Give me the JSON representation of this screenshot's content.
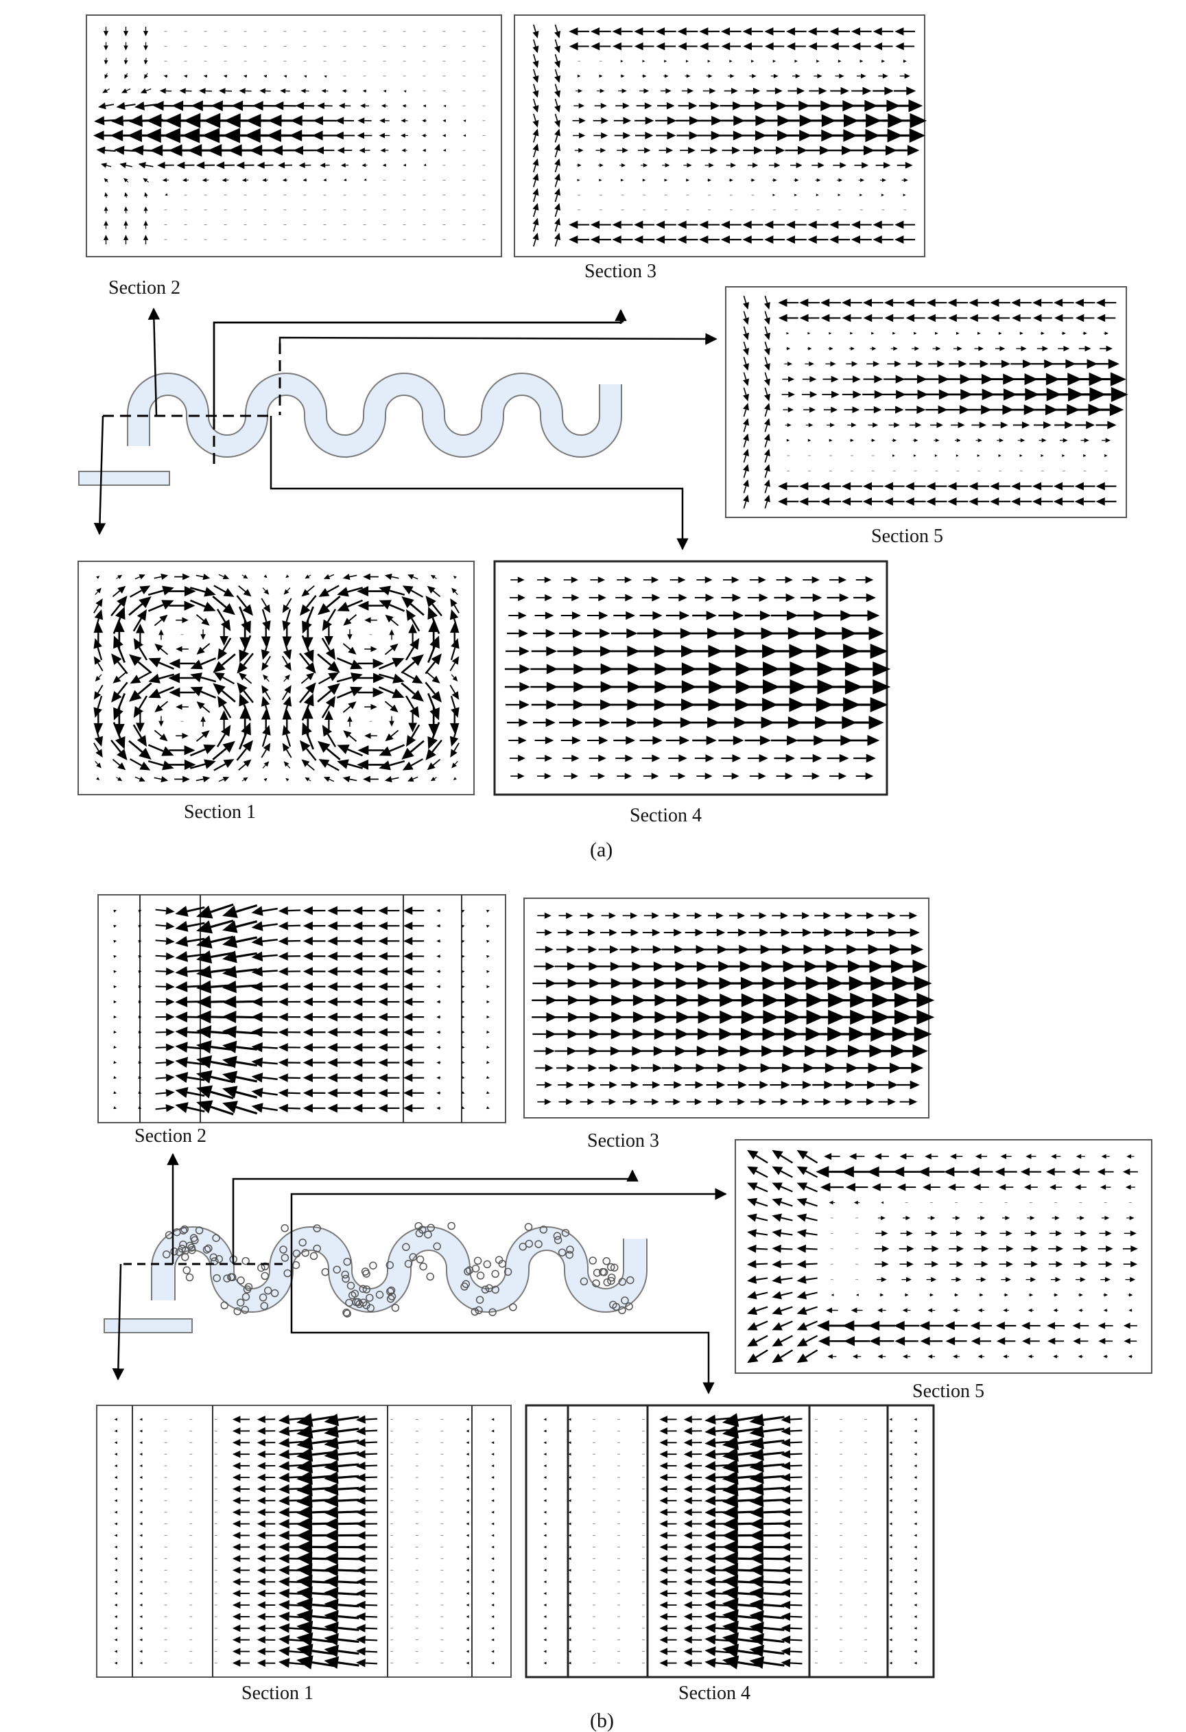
{
  "panels": [
    {
      "label": "(a)",
      "sections": [
        {
          "id": "s2",
          "label": "Section 2",
          "pattern": "leftjet"
        },
        {
          "id": "s3",
          "label": "Section 3",
          "pattern": "rightjet_return"
        },
        {
          "id": "s5",
          "label": "Section 5",
          "pattern": "rightjet_return"
        },
        {
          "id": "s1",
          "label": "Section 1",
          "pattern": "four_vortex"
        },
        {
          "id": "s4",
          "label": "Section 4",
          "pattern": "rightjet_uniform"
        }
      ]
    },
    {
      "label": "(b)",
      "sections": [
        {
          "id": "s2",
          "label": "Section 2",
          "pattern": "curved_leftjet"
        },
        {
          "id": "s3",
          "label": "Section 3",
          "pattern": "rightjet_uniform"
        },
        {
          "id": "s5",
          "label": "Section 5",
          "pattern": "leftjet_return"
        },
        {
          "id": "s1",
          "label": "Section 1",
          "pattern": "central_leftjet"
        },
        {
          "id": "s4",
          "label": "Section 4",
          "pattern": "central_leftjet"
        }
      ]
    }
  ],
  "colors": {
    "channel_fill": "#e3ecf9",
    "channel_stroke": "#7a7a7a",
    "arrow": "#000000"
  }
}
